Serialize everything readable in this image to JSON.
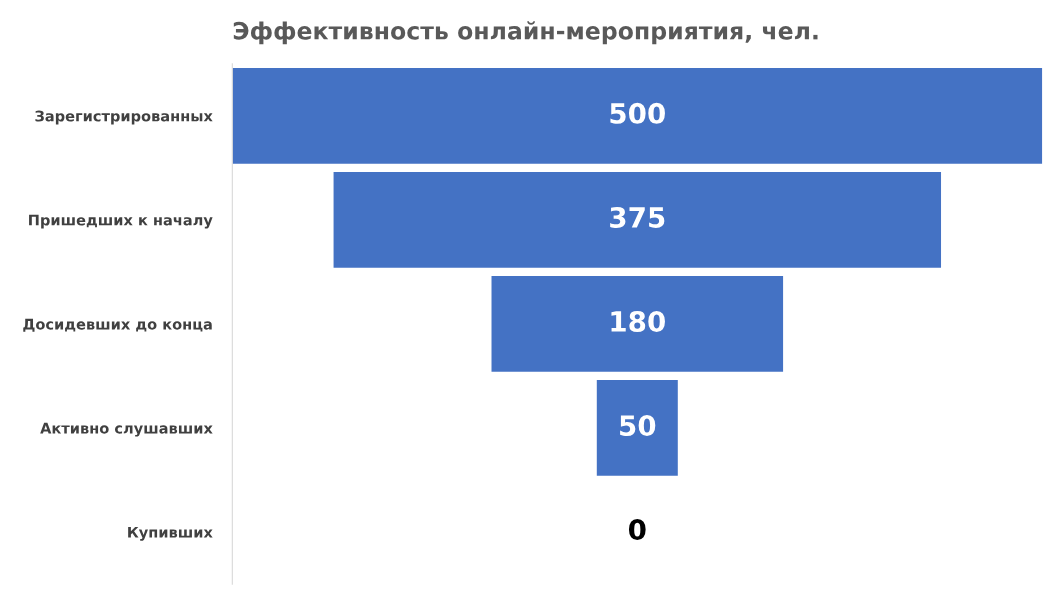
{
  "chart_data": {
    "type": "other",
    "title": "Эффективность онлайн-мероприятия, чел.",
    "categories": [
      "Зарегистрированных",
      "Пришедших к началу",
      "Досидевших до конца",
      "Активно слушавших",
      "Купивших"
    ],
    "values": [
      500,
      375,
      180,
      50,
      0
    ],
    "color": "#4472c4",
    "data_labels": true
  }
}
